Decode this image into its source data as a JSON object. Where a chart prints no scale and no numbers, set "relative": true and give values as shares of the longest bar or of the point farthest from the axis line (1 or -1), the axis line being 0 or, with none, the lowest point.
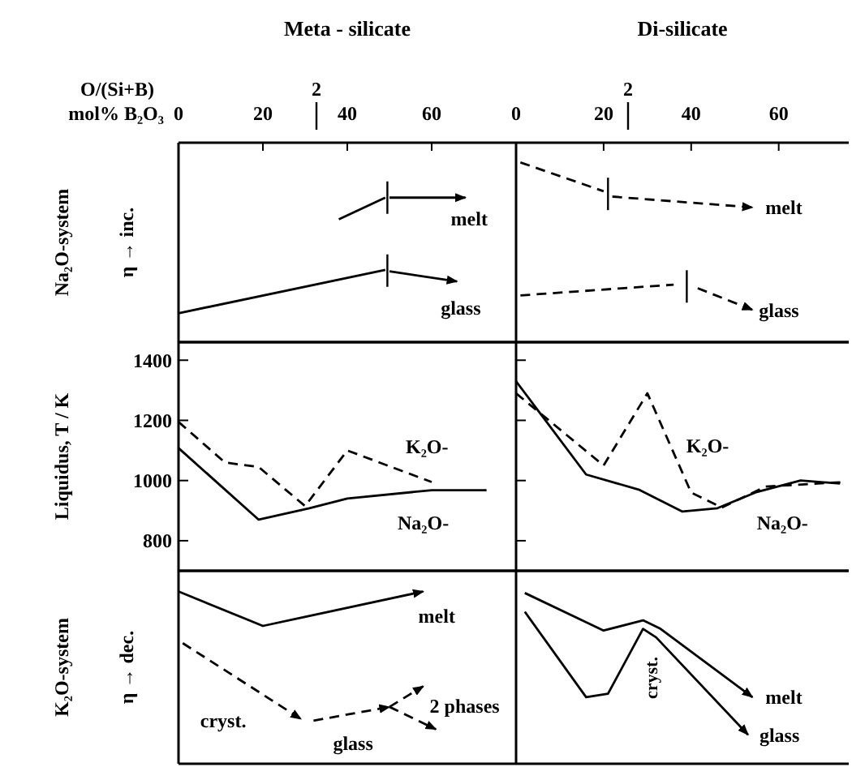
{
  "chart_data": [
    {
      "type": "line",
      "title": "Meta - silicate",
      "xlabel": "mol% B₂O₃",
      "ylabel": "Na₂O-system\nη → inc.",
      "relative": true,
      "xlim": [
        0,
        80
      ],
      "xticks": [
        0,
        20,
        40,
        60
      ],
      "annotations": [
        "O/(Si+B)",
        "2"
      ],
      "series": [
        {
          "name": "melt",
          "color": "#000000",
          "line_style": "solid",
          "x": [
            38,
            49,
            49.5,
            50,
            68
          ],
          "values": [
            0.85,
            1.0,
            null,
            1.0,
            1.0
          ]
        },
        {
          "name": "glass",
          "color": "#000000",
          "line_style": "solid",
          "x": [
            0,
            49,
            49.5,
            50,
            66
          ],
          "values": [
            0.2,
            0.5,
            null,
            0.49,
            0.42
          ]
        }
      ]
    },
    {
      "type": "line",
      "title": "Di-silicate",
      "relative": true,
      "xlim": [
        0,
        76
      ],
      "xticks": [
        0,
        20,
        40,
        60
      ],
      "annotations": [
        "2"
      ],
      "series": [
        {
          "name": "melt",
          "color": "#000000",
          "line_style": "dashed",
          "x": [
            1,
            20,
            21,
            22,
            54
          ],
          "values": [
            1.0,
            0.84,
            null,
            0.81,
            0.75
          ]
        },
        {
          "name": "glass",
          "color": "#000000",
          "line_style": "dashed",
          "x": [
            1,
            36,
            39,
            41.5,
            54
          ],
          "values": [
            0.26,
            0.32,
            null,
            0.3,
            0.18
          ]
        }
      ]
    },
    {
      "type": "line",
      "ylabel": "Liquidus, T / K",
      "xlim": [
        0,
        80
      ],
      "ylim": [
        700,
        1460
      ],
      "yticks": [
        800,
        1000,
        1200,
        1400
      ],
      "tick_labels": "y",
      "series": [
        {
          "name": "K₂O-",
          "color": "#000000",
          "line_style": "dashed",
          "x": [
            0,
            11,
            19,
            30,
            40,
            60
          ],
          "values": [
            1195,
            1060,
            1045,
            915,
            1100,
            995
          ]
        },
        {
          "name": "Na₂O-",
          "color": "#000000",
          "line_style": "solid",
          "x": [
            0,
            19,
            31,
            40,
            60,
            73
          ],
          "values": [
            1108,
            870,
            908,
            940,
            968,
            968
          ]
        }
      ]
    },
    {
      "type": "line",
      "xlim": [
        0,
        76
      ],
      "ylim": [
        700,
        1460
      ],
      "yticks": [
        800,
        1000,
        1200,
        1400
      ],
      "tick_labels": false,
      "series": [
        {
          "name": "K₂O-",
          "color": "#000000",
          "line_style": "dashed",
          "x": [
            0,
            20,
            30,
            40,
            47,
            57,
            75
          ],
          "values": [
            1290,
            1050,
            1290,
            960,
            910,
            980,
            995
          ]
        },
        {
          "name": "Na₂O-",
          "color": "#000000",
          "line_style": "solid",
          "x": [
            0,
            16,
            28,
            38,
            46,
            55,
            65,
            74
          ],
          "values": [
            1330,
            1020,
            970,
            897,
            908,
            962,
            1000,
            990
          ]
        }
      ]
    },
    {
      "type": "line",
      "ylabel": "K₂O-system\nη → dec.",
      "relative": true,
      "xlim": [
        0,
        80
      ],
      "tick_labels": false,
      "series": [
        {
          "name": "melt",
          "color": "#000000",
          "line_style": "solid",
          "x": [
            0,
            20,
            58
          ],
          "values": [
            1.0,
            0.8,
            1.0
          ]
        },
        {
          "name": "cryst.",
          "color": "#000000",
          "line_style": "dashed",
          "x": [
            1,
            29
          ],
          "values": [
            0.7,
            0.26
          ]
        },
        {
          "name": "glass",
          "color": "#000000",
          "line_style": "dashed",
          "x": [
            32,
            50
          ],
          "values": [
            0.25,
            0.33
          ]
        },
        {
          "name": "2 phases",
          "color": "#000000",
          "line_style": "dashed",
          "x": [
            50,
            58
          ],
          "values": [
            0.33,
            0.45
          ]
        },
        {
          "color": "#000000",
          "line_style": "dashed",
          "x": [
            50,
            61
          ],
          "values": [
            0.33,
            0.2
          ]
        }
      ]
    },
    {
      "type": "line",
      "relative": true,
      "xlim": [
        0,
        76
      ],
      "tick_labels": false,
      "series": [
        {
          "name": "melt",
          "color": "#000000",
          "line_style": "solid",
          "x": [
            2,
            20,
            29,
            33,
            54
          ],
          "values": [
            1.0,
            0.78,
            0.84,
            0.79,
            0.39
          ]
        },
        {
          "name": "glass",
          "color": "#000000",
          "line_style": "solid",
          "x": [
            2,
            16,
            21,
            29,
            32,
            53
          ],
          "values": [
            0.89,
            0.39,
            0.41,
            0.79,
            0.74,
            0.17
          ]
        }
      ],
      "annotations": [
        "cryst."
      ]
    }
  ]
}
